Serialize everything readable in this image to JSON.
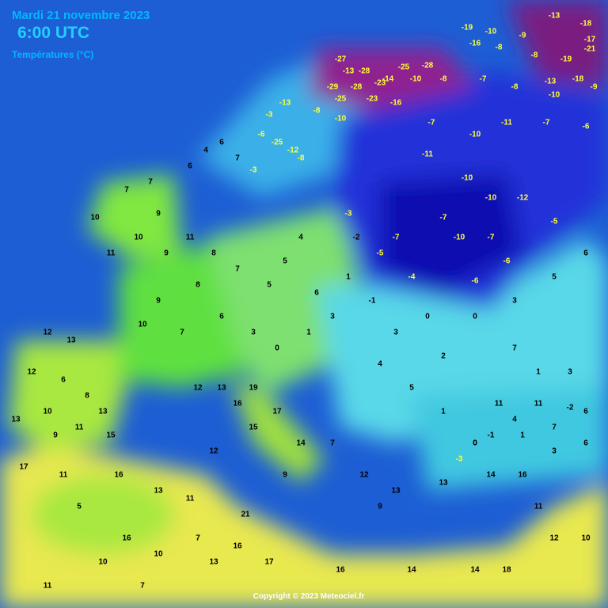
{
  "header": {
    "date": "Mardi 21 novembre 2023",
    "time": "6:00 UTC",
    "subtitle": "Températures (°C)"
  },
  "footer": {
    "copyright": "Copyright © 2023 Meteociel.fr"
  },
  "stations": [
    -19,
    -10,
    -9,
    -13,
    -18,
    -17,
    -21,
    -19,
    -18,
    -13,
    -16,
    -8,
    -8,
    -28,
    -25,
    -10,
    -14,
    -28,
    -27,
    -13,
    -29,
    -28,
    -23,
    -25,
    -23,
    -16,
    -8,
    -7,
    -8,
    -10,
    -9,
    -7,
    -10,
    -11,
    -7,
    -6,
    -11,
    -10,
    -10,
    -12,
    -5,
    -7,
    -10,
    -7,
    -6,
    -6,
    -4,
    -7,
    -5,
    -2,
    -3,
    -3,
    -13,
    -6,
    -25,
    -12,
    -8,
    -3,
    -8,
    -10,
    6,
    7,
    4,
    6,
    7,
    7,
    9,
    10,
    9,
    11,
    10,
    11,
    8,
    7,
    5,
    5,
    4,
    8,
    9,
    10,
    7,
    6,
    3,
    0,
    1,
    3,
    1,
    6,
    -1,
    3,
    0,
    2,
    0,
    3,
    5,
    6,
    4,
    5,
    1,
    0,
    4,
    7,
    6,
    1,
    7,
    3,
    12,
    13,
    12,
    6,
    8,
    10,
    11,
    13,
    9,
    15,
    13,
    16,
    15,
    17,
    14,
    9,
    7,
    12,
    9,
    13,
    12,
    12,
    13,
    19,
    17,
    11,
    16,
    13,
    11,
    5,
    16,
    10,
    7,
    13,
    16,
    11,
    10,
    7,
    17,
    16,
    14,
    14,
    18,
    12,
    10,
    21,
    13,
    14,
    16,
    11,
    11,
    11,
    -2,
    -3,
    0,
    -1,
    1,
    3,
    6
  ]
}
